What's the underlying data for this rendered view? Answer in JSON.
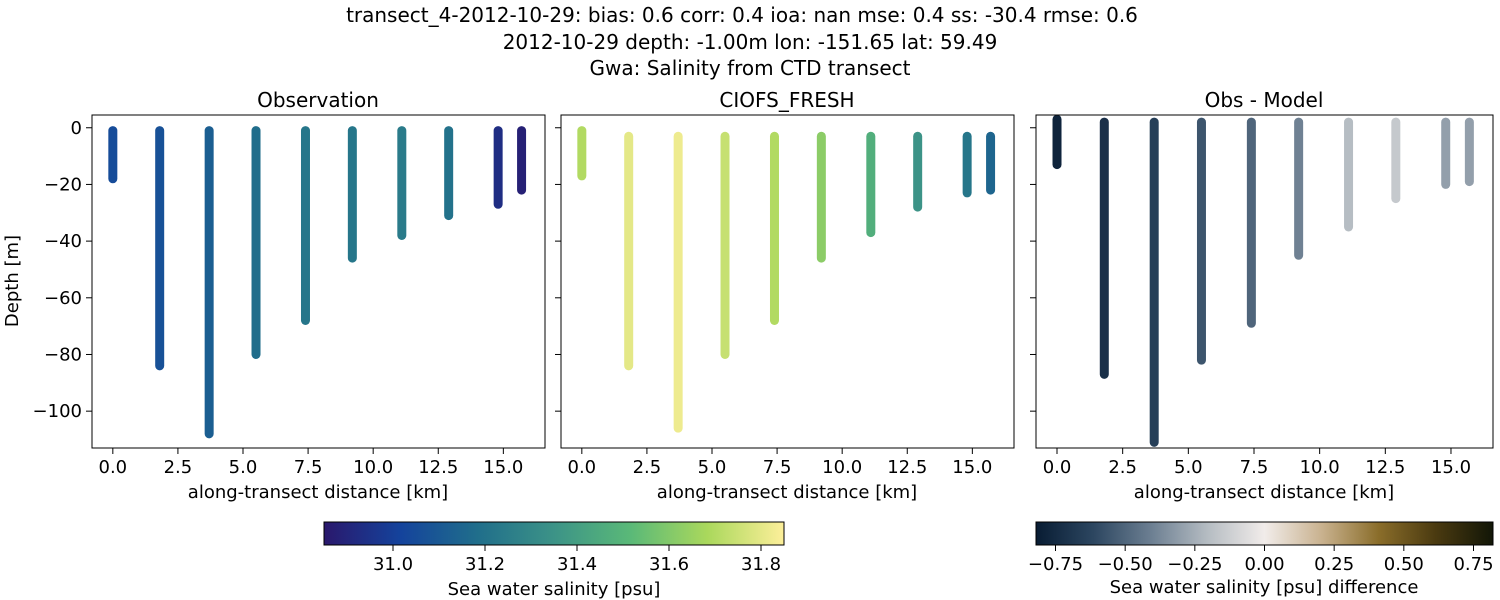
{
  "suptitle": {
    "line1": "transect_4-2012-10-29: bias: 0.6  corr: 0.4  ioa: nan  mse: 0.4  ss: -30.4  rmse: 0.6",
    "line2": "2012-10-29 depth: -1.00m lon: -151.65 lat: 59.49",
    "line3": "Gwa: Salinity from CTD transect"
  },
  "chart_data": [
    {
      "type": "scatter",
      "title": "Observation",
      "xlabel": "along-transect distance [km]",
      "ylabel": "Depth [m]",
      "xlim": [
        -0.8,
        16.6
      ],
      "ylim": [
        -113,
        4.5
      ],
      "xticks": [
        0.0,
        2.5,
        5.0,
        7.5,
        10.0,
        12.5,
        15.0
      ],
      "xtick_labels": [
        "0.0",
        "2.5",
        "5.0",
        "7.5",
        "10.0",
        "12.5",
        "15.0"
      ],
      "yticks": [
        0,
        -20,
        -40,
        -60,
        -80,
        -100
      ],
      "ytick_labels": [
        "0",
        "−20",
        "−40",
        "−60",
        "−80",
        "−100"
      ],
      "colorscale": "haline",
      "casts": [
        {
          "x": 0.0,
          "top": -1,
          "bottom": -18,
          "value": 31.05
        },
        {
          "x": 1.8,
          "top": -1,
          "bottom": -84,
          "value": 31.07
        },
        {
          "x": 3.7,
          "top": -1,
          "bottom": -108,
          "value": 31.12
        },
        {
          "x": 5.5,
          "top": -1,
          "bottom": -80,
          "value": 31.18
        },
        {
          "x": 7.4,
          "top": -1,
          "bottom": -68,
          "value": 31.22
        },
        {
          "x": 9.2,
          "top": -1,
          "bottom": -46,
          "value": 31.22
        },
        {
          "x": 11.1,
          "top": -1,
          "bottom": -38,
          "value": 31.24
        },
        {
          "x": 12.9,
          "top": -1,
          "bottom": -31,
          "value": 31.2
        },
        {
          "x": 14.8,
          "top": -1,
          "bottom": -27,
          "value": 30.93
        },
        {
          "x": 15.7,
          "top": -1,
          "bottom": -22,
          "value": 30.88
        }
      ]
    },
    {
      "type": "scatter",
      "title": "CIOFS_FRESH",
      "xlabel": "along-transect distance [km]",
      "xlim": [
        -0.8,
        16.6
      ],
      "ylim": [
        -113,
        4.5
      ],
      "xticks": [
        0.0,
        2.5,
        5.0,
        7.5,
        10.0,
        12.5,
        15.0
      ],
      "xtick_labels": [
        "0.0",
        "2.5",
        "5.0",
        "7.5",
        "10.0",
        "12.5",
        "15.0"
      ],
      "colorscale": "haline",
      "casts": [
        {
          "x": 0.0,
          "top": -1,
          "bottom": -17,
          "value": 31.7
        },
        {
          "x": 1.8,
          "top": -3,
          "bottom": -84,
          "value": 31.8
        },
        {
          "x": 3.7,
          "top": -3,
          "bottom": -106,
          "value": 31.82
        },
        {
          "x": 5.5,
          "top": -3,
          "bottom": -80,
          "value": 31.74
        },
        {
          "x": 7.4,
          "top": -3,
          "bottom": -68,
          "value": 31.7
        },
        {
          "x": 9.2,
          "top": -3,
          "bottom": -46,
          "value": 31.62
        },
        {
          "x": 11.1,
          "top": -3,
          "bottom": -37,
          "value": 31.47
        },
        {
          "x": 12.9,
          "top": -3,
          "bottom": -28,
          "value": 31.35
        },
        {
          "x": 14.8,
          "top": -3,
          "bottom": -23,
          "value": 31.22
        },
        {
          "x": 15.7,
          "top": -3,
          "bottom": -22,
          "value": 31.15
        }
      ]
    },
    {
      "type": "scatter",
      "title": "Obs - Model",
      "xlabel": "along-transect distance [km]",
      "xlim": [
        -0.8,
        16.6
      ],
      "ylim": [
        -113,
        4.5
      ],
      "xticks": [
        0.0,
        2.5,
        5.0,
        7.5,
        10.0,
        12.5,
        15.0
      ],
      "xtick_labels": [
        "0.0",
        "2.5",
        "5.0",
        "7.5",
        "10.0",
        "12.5",
        "15.0"
      ],
      "colorscale": "diff",
      "casts": [
        {
          "x": 0.0,
          "top": 3,
          "bottom": -13,
          "value": -0.78
        },
        {
          "x": 1.8,
          "top": 2,
          "bottom": -87,
          "value": -0.72
        },
        {
          "x": 3.7,
          "top": 2,
          "bottom": -111,
          "value": -0.65
        },
        {
          "x": 5.5,
          "top": 2,
          "bottom": -82,
          "value": -0.56
        },
        {
          "x": 7.4,
          "top": 2,
          "bottom": -69,
          "value": -0.5
        },
        {
          "x": 9.2,
          "top": 2,
          "bottom": -45,
          "value": -0.4
        },
        {
          "x": 11.1,
          "top": 2,
          "bottom": -35,
          "value": -0.2
        },
        {
          "x": 12.9,
          "top": 2,
          "bottom": -25,
          "value": -0.15
        },
        {
          "x": 14.8,
          "top": 2,
          "bottom": -20,
          "value": -0.3
        },
        {
          "x": 15.7,
          "top": 2,
          "bottom": -19,
          "value": -0.3
        }
      ]
    }
  ],
  "colorbars": [
    {
      "label": "Sea water salinity [psu]",
      "colorscale": "haline",
      "range": [
        30.85,
        31.85
      ],
      "ticks": [
        31.0,
        31.2,
        31.4,
        31.6,
        31.8
      ],
      "tick_labels": [
        "31.0",
        "31.2",
        "31.4",
        "31.6",
        "31.8"
      ]
    },
    {
      "label": "Sea water salinity [psu] difference",
      "colorscale": "diff",
      "range": [
        -0.82,
        0.82
      ],
      "ticks": [
        -0.75,
        -0.5,
        -0.25,
        0.0,
        0.25,
        0.5,
        0.75
      ],
      "tick_labels": [
        "−0.75",
        "−0.50",
        "−0.25",
        "0.00",
        "0.25",
        "0.50",
        "0.75"
      ]
    }
  ],
  "colorscales": {
    "haline": [
      "#2a186c",
      "#14439c",
      "#206e8b",
      "#3c9387",
      "#5ab978",
      "#aad85c",
      "#fdef9a"
    ],
    "diff": [
      "#081c33",
      "#2c4660",
      "#6b7e91",
      "#b5bcc2",
      "#f1ecea",
      "#c9b28f",
      "#8a6d2a",
      "#4a3a10",
      "#121607"
    ]
  }
}
